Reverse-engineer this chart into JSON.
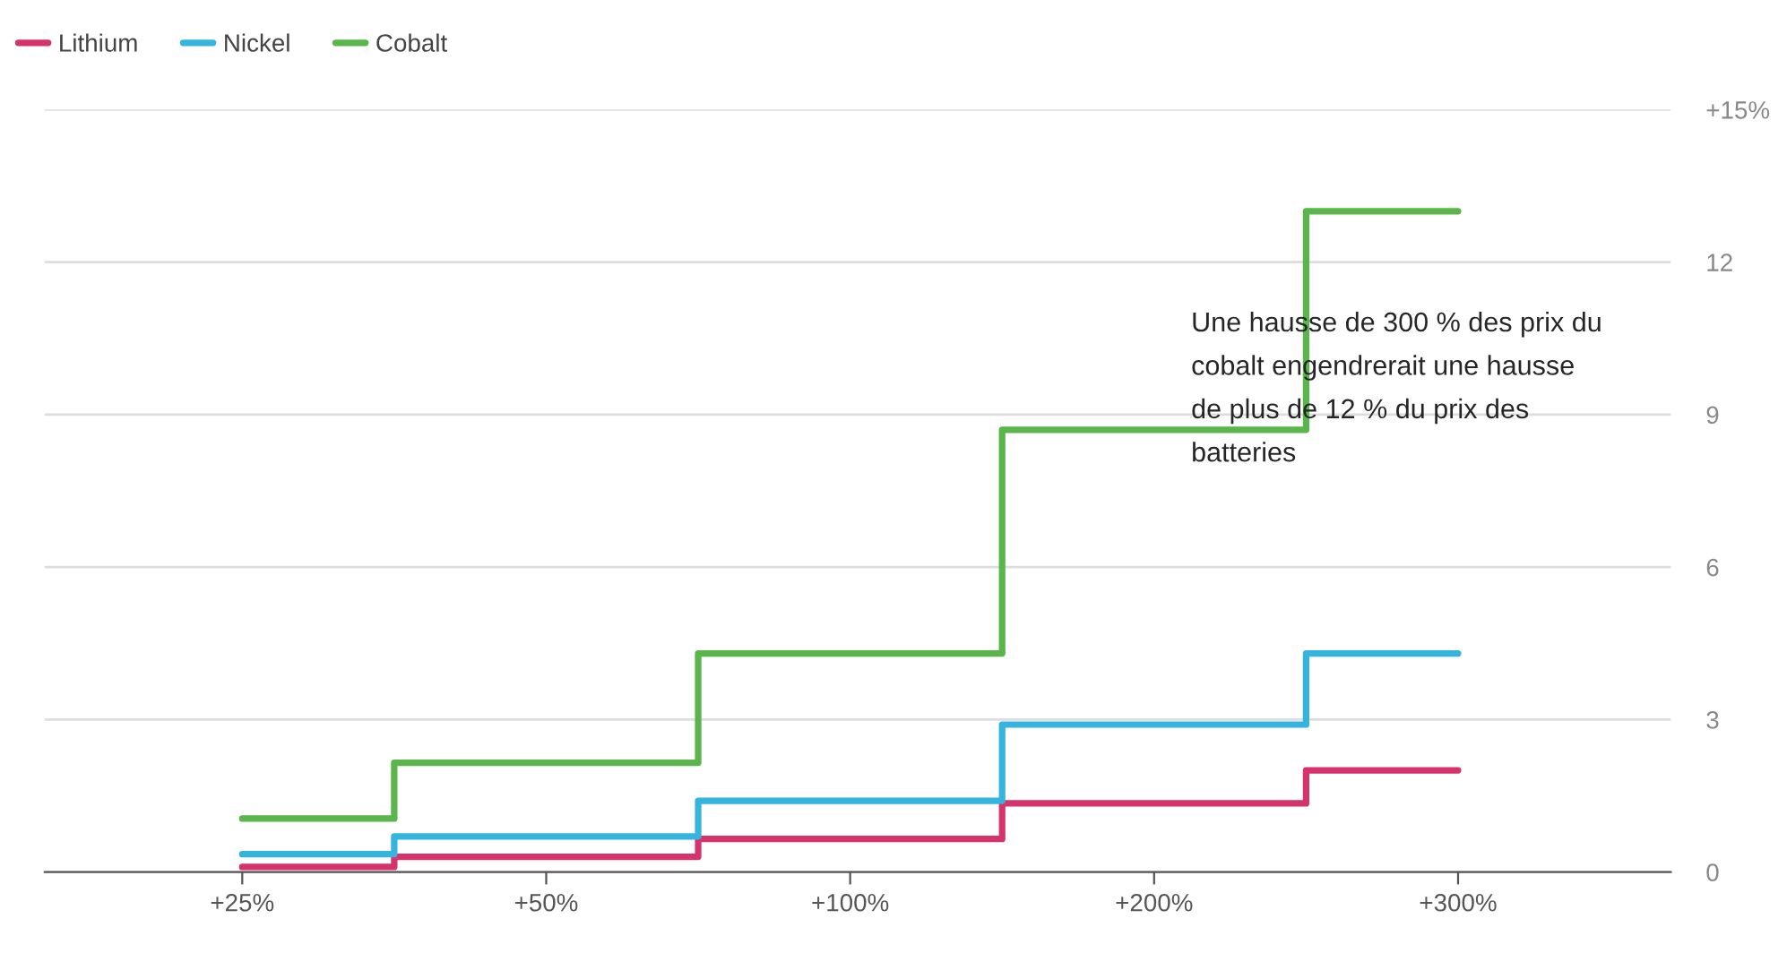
{
  "chart_data": {
    "type": "step",
    "categories": [
      "+25%",
      "+50%",
      "+100%",
      "+200%",
      "+300%"
    ],
    "series": [
      {
        "name": "Lithium",
        "color": "#d6336c",
        "values": [
          0.1,
          0.3,
          0.65,
          1.35,
          2.0
        ]
      },
      {
        "name": "Nickel",
        "color": "#35b4de",
        "values": [
          0.35,
          0.7,
          1.4,
          2.9,
          4.3
        ]
      },
      {
        "name": "Cobalt",
        "color": "#5ab54a",
        "values": [
          1.05,
          2.15,
          4.3,
          8.7,
          13.0
        ]
      }
    ],
    "ylim": [
      0,
      15
    ],
    "yticks": [
      0,
      3,
      6,
      9,
      12,
      {
        "value": 15,
        "label": "+15%"
      }
    ],
    "grid": "y",
    "legend": "top left",
    "annotations": [
      "Une hausse de 300 % des prix du cobalt engendrerait une hausse de plus de 12 % du prix des batteries"
    ]
  }
}
